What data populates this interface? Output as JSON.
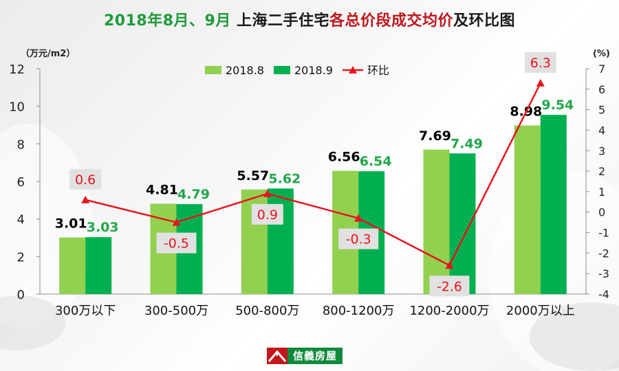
{
  "title": {
    "part1": "2018年8月、9月 ",
    "part2": "上海二手住宅",
    "part3": "各总价段成交均价",
    "part4": "及环比图"
  },
  "logo": {
    "name": "信義房屋"
  },
  "colors": {
    "s1": "#92d050",
    "s2": "#00b050",
    "line": "#e8141e",
    "label_s1": "#000000",
    "label_s2": "#21a74a",
    "label_line": "#e8141e",
    "label_box": "#e1e1e1"
  },
  "chart_data": {
    "type": "bar",
    "categories": [
      "300万以下",
      "300-500万",
      "500-800万",
      "800-1200万",
      "1200-2000万",
      "2000万以上"
    ],
    "series": [
      {
        "name": "2018.8",
        "values": [
          3.01,
          4.81,
          5.57,
          6.56,
          7.69,
          8.98
        ]
      },
      {
        "name": "2018.9",
        "values": [
          3.03,
          4.79,
          5.62,
          6.54,
          7.49,
          9.54
        ]
      }
    ],
    "line_series": {
      "name": "环比",
      "values": [
        0.6,
        -0.5,
        0.9,
        -0.3,
        -2.6,
        6.3
      ],
      "axis": "right"
    },
    "ylabel": "（万元/m2）",
    "ylim": [
      0,
      12
    ],
    "yticks": [
      0,
      2,
      4,
      6,
      8,
      10,
      12
    ],
    "y2label": "(%)",
    "y2lim": [
      -4,
      7
    ],
    "y2ticks": [
      -4,
      -3,
      -2,
      -1,
      0,
      1,
      2,
      3,
      4,
      5,
      6,
      7
    ],
    "legend": "top-center",
    "grid": false
  }
}
